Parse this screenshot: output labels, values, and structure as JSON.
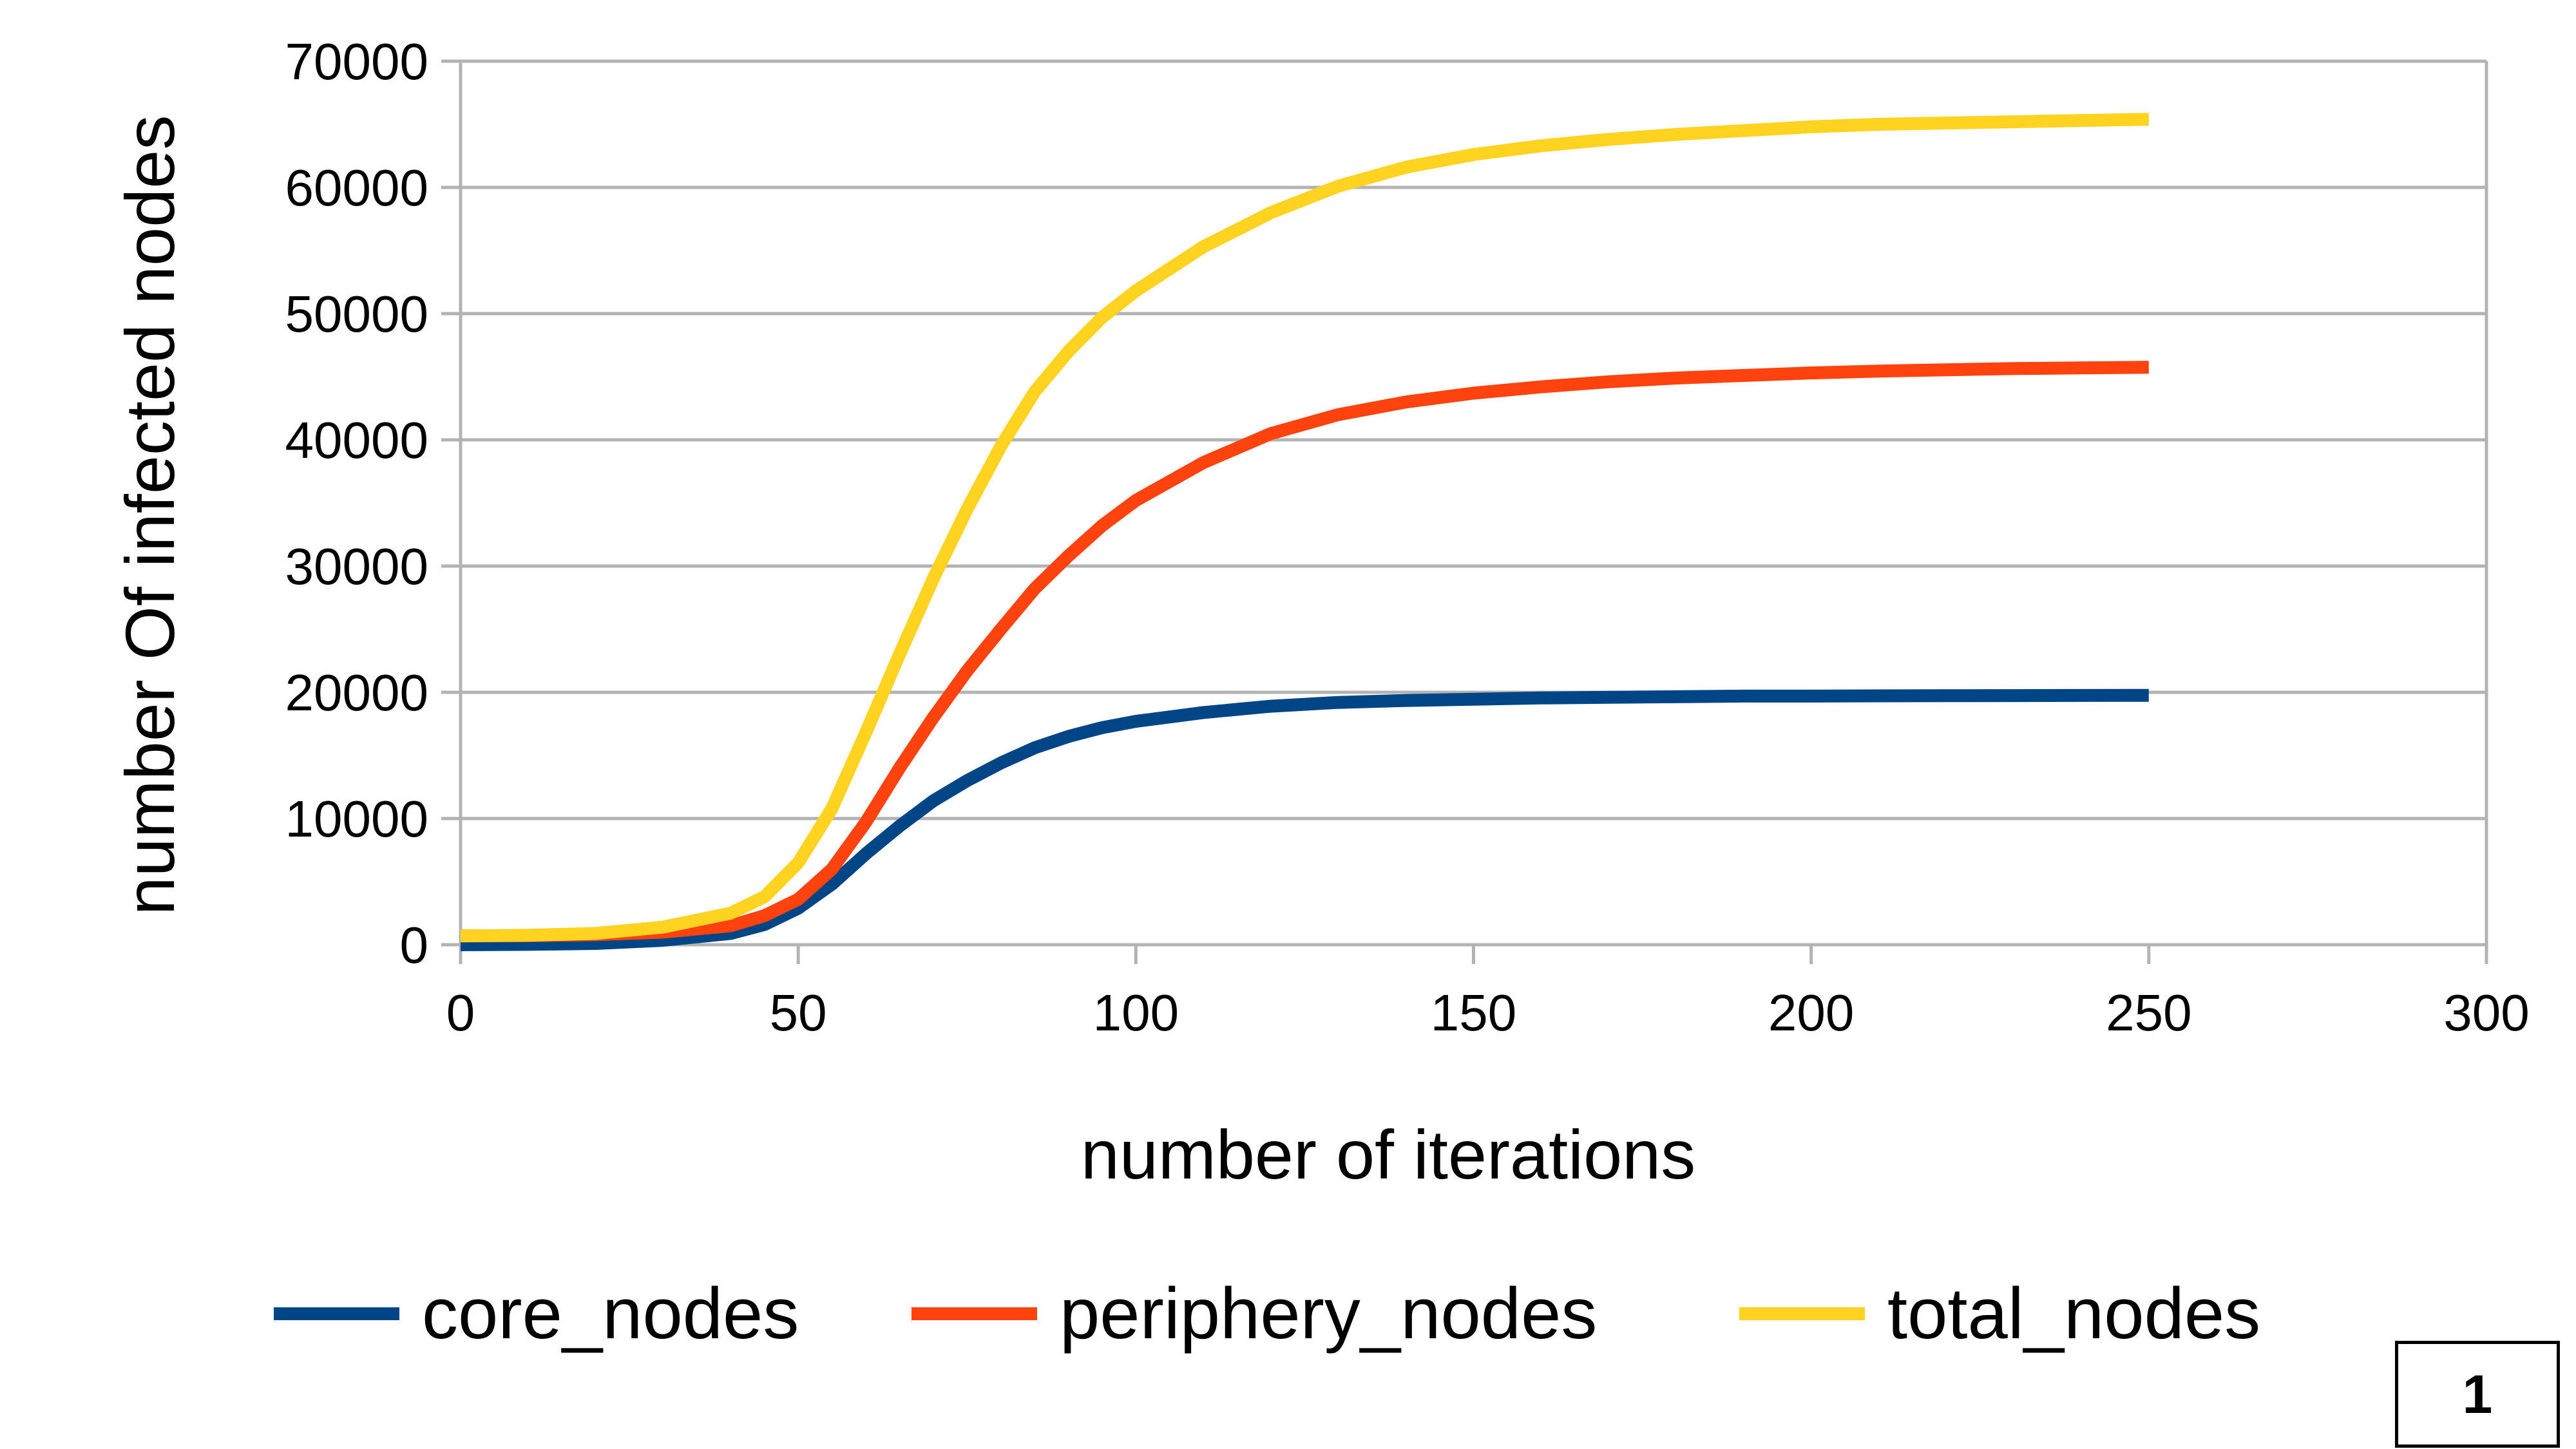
{
  "chart_data": {
    "type": "line",
    "xlabel": "number of iterations",
    "ylabel": "number Of infected nodes",
    "xlim": [
      0,
      300
    ],
    "ylim": [
      0,
      70000
    ],
    "x_ticks": [
      0,
      50,
      100,
      150,
      200,
      250,
      300
    ],
    "y_ticks": [
      0,
      10000,
      20000,
      30000,
      40000,
      50000,
      60000,
      70000
    ],
    "grid": "horizontal",
    "legend_position": "bottom",
    "x": [
      0,
      10,
      20,
      30,
      40,
      45,
      50,
      55,
      60,
      65,
      70,
      75,
      80,
      85,
      90,
      95,
      100,
      110,
      120,
      130,
      140,
      150,
      160,
      170,
      180,
      190,
      200,
      210,
      220,
      230,
      240,
      250
    ],
    "series": [
      {
        "name": "core_nodes",
        "color": "#004586",
        "values": [
          0,
          30,
          100,
          350,
          900,
          1600,
          2900,
          4800,
          7200,
          9400,
          11400,
          13000,
          14400,
          15600,
          16500,
          17200,
          17700,
          18400,
          18900,
          19200,
          19350,
          19450,
          19550,
          19600,
          19650,
          19700,
          19700,
          19720,
          19730,
          19740,
          19750,
          19760
        ]
      },
      {
        "name": "periphery_nodes",
        "color": "#ff420e",
        "values": [
          700,
          720,
          800,
          1000,
          1500,
          2300,
          3600,
          6000,
          9700,
          14000,
          18000,
          21700,
          25000,
          28200,
          30800,
          33200,
          35200,
          38200,
          40500,
          42000,
          43000,
          43700,
          44200,
          44600,
          44900,
          45100,
          45300,
          45450,
          45550,
          45650,
          45700,
          45750
        ]
      },
      {
        "name": "total_nodes",
        "color": "#ffd320",
        "values": [
          700,
          750,
          900,
          1400,
          2500,
          3800,
          6500,
          10800,
          16800,
          23000,
          29000,
          34500,
          39500,
          43800,
          47000,
          49700,
          51800,
          55300,
          58000,
          60100,
          61600,
          62600,
          63300,
          63800,
          64200,
          64500,
          64800,
          65000,
          65100,
          65200,
          65300,
          65400
        ]
      }
    ]
  },
  "badge": {
    "text": "1"
  }
}
